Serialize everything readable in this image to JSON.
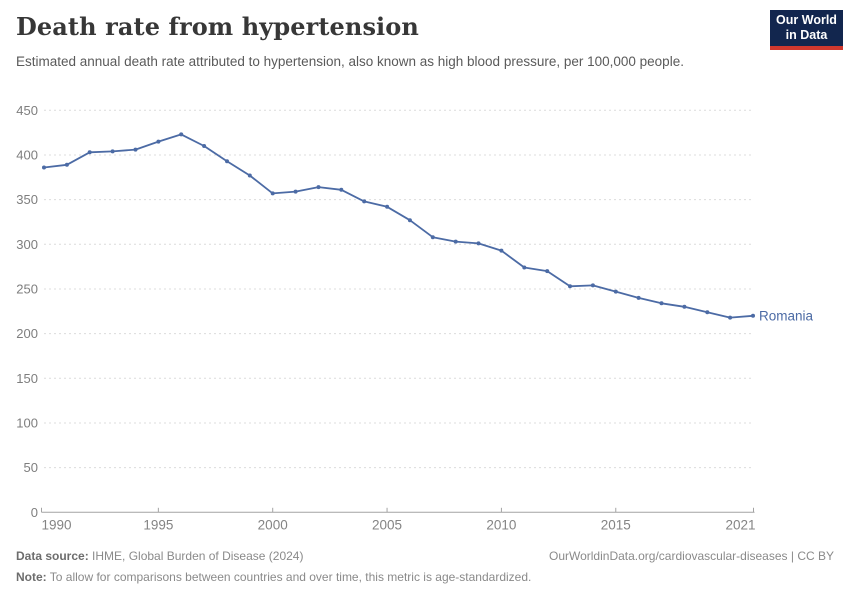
{
  "header": {
    "title": "Death rate from hypertension",
    "subtitle": "Estimated annual death rate attributed to hypertension, also known as high blood pressure, per 100,000 people.",
    "logo": {
      "line1": "Our World",
      "line2": "in Data",
      "bg_color": "#12264e",
      "accent_color": "#d0382e"
    }
  },
  "chart_data": {
    "type": "line",
    "title": "Death rate from hypertension",
    "xlabel": "",
    "ylabel": "",
    "x": [
      1990,
      1991,
      1992,
      1993,
      1994,
      1995,
      1996,
      1997,
      1998,
      1999,
      2000,
      2001,
      2002,
      2003,
      2004,
      2005,
      2006,
      2007,
      2008,
      2009,
      2010,
      2011,
      2012,
      2013,
      2014,
      2015,
      2016,
      2017,
      2018,
      2019,
      2020,
      2021
    ],
    "series": [
      {
        "name": "Romania",
        "color": "#4c6ba5",
        "values": [
          386,
          389,
          403,
          404,
          406,
          415,
          423,
          410,
          393,
          377,
          357,
          359,
          364,
          361,
          348,
          342,
          327,
          308,
          303,
          301,
          293,
          274,
          270,
          253,
          254,
          247,
          240,
          234,
          230,
          224,
          218,
          220
        ]
      }
    ],
    "xticks": [
      1990,
      1995,
      2000,
      2005,
      2010,
      2015,
      2021
    ],
    "yticks": [
      0,
      50,
      100,
      150,
      200,
      250,
      300,
      350,
      400,
      450
    ],
    "xlim": [
      1990,
      2021
    ],
    "ylim": [
      0,
      450
    ],
    "grid": "horizontal-dashed",
    "legend_position": "end-of-line-label",
    "end_label": "Romania",
    "axis_color": "#a3a3a3",
    "grid_color": "#dcdcdc",
    "tick_label_color": "#848484"
  },
  "footer": {
    "source_label": "Data source:",
    "source_text": " IHME, Global Burden of Disease (2024)",
    "credit": "OurWorldinData.org/cardiovascular-diseases | CC BY",
    "note_label": "Note:",
    "note_text": " To allow for comparisons between countries and over time, this metric is age-standardized."
  }
}
